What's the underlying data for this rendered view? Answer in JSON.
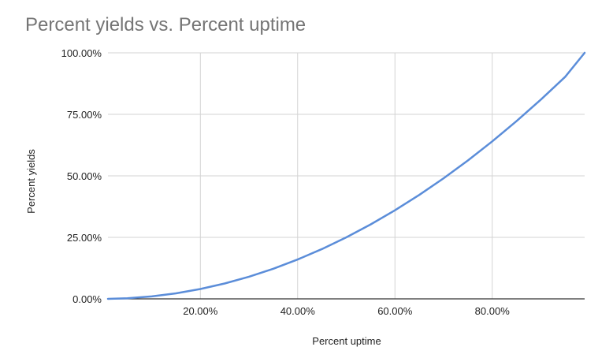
{
  "chart_data": {
    "type": "line",
    "title": "Percent yields vs. Percent uptime",
    "xlabel": "Percent uptime",
    "ylabel": "Percent yields",
    "xlim": [
      0.01,
      0.99
    ],
    "ylim": [
      0,
      1
    ],
    "x_ticks": [
      0.2,
      0.4,
      0.6,
      0.8
    ],
    "x_tick_labels": [
      "20.00%",
      "40.00%",
      "60.00%",
      "80.00%"
    ],
    "y_ticks": [
      0,
      0.25,
      0.5,
      0.75,
      1
    ],
    "y_tick_labels": [
      "0.00%",
      "25.00%",
      "50.00%",
      "75.00%",
      "100.00%"
    ],
    "grid": true,
    "series": [
      {
        "color": "#5b8dd9",
        "x": [
          0.01,
          0.05,
          0.1,
          0.15,
          0.2,
          0.25,
          0.3,
          0.35,
          0.4,
          0.45,
          0.5,
          0.55,
          0.6,
          0.65,
          0.7,
          0.75,
          0.8,
          0.85,
          0.9,
          0.95,
          0.99
        ],
        "y": [
          0.0001,
          0.0025,
          0.01,
          0.0225,
          0.04,
          0.0625,
          0.09,
          0.1225,
          0.16,
          0.2025,
          0.25,
          0.3025,
          0.36,
          0.4225,
          0.49,
          0.5625,
          0.64,
          0.7225,
          0.81,
          0.9025,
          1.0
        ]
      }
    ]
  }
}
